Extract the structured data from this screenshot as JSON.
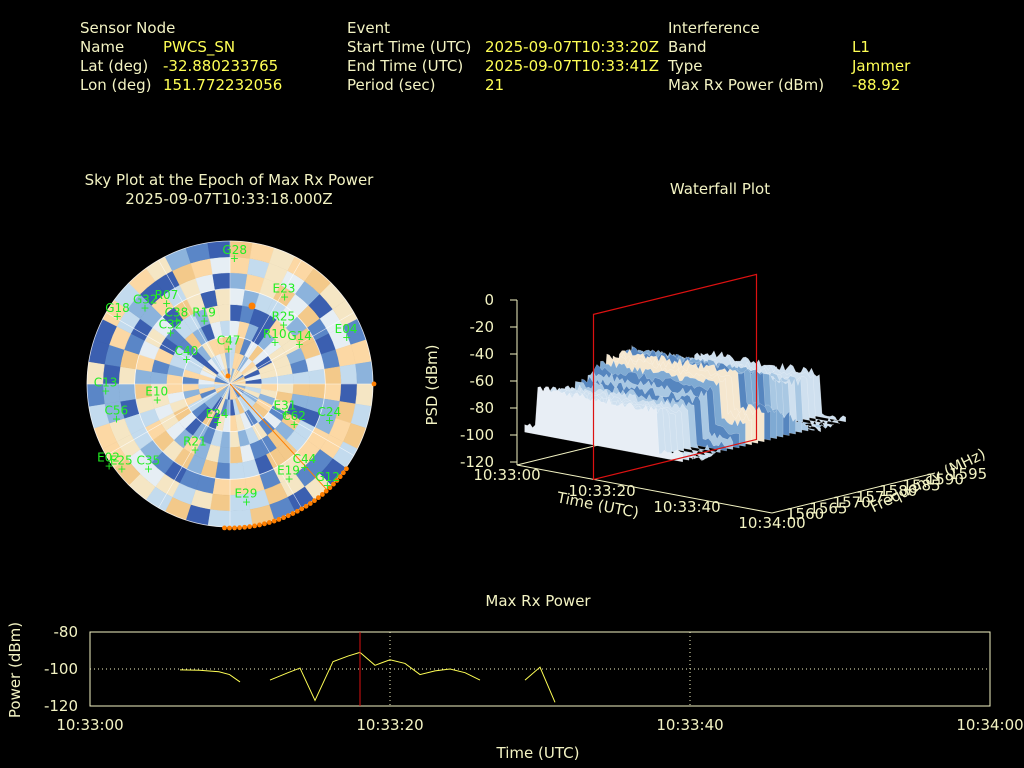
{
  "header": {
    "sensor": {
      "title": "Sensor Node",
      "rows": [
        {
          "label": "Name",
          "value": "PWCS_SN"
        },
        {
          "label": "Lat (deg)",
          "value": "-32.880233765"
        },
        {
          "label": "Lon (deg)",
          "value": "151.772232056"
        }
      ]
    },
    "event": {
      "title": "Event",
      "rows": [
        {
          "label": "Start Time (UTC)",
          "value": "2025-09-07T10:33:20Z"
        },
        {
          "label": "End Time (UTC)",
          "value": "2025-09-07T10:33:41Z"
        },
        {
          "label": "Period (sec)",
          "value": "21"
        }
      ]
    },
    "interference": {
      "title": "Interference",
      "rows": [
        {
          "label": "Band",
          "value": "L1"
        },
        {
          "label": "Type",
          "value": "Jammer"
        },
        {
          "label": "Max Rx Power (dBm)",
          "value": "-88.92"
        }
      ]
    }
  },
  "colors": {
    "background": "#000000",
    "label": "#f3f3c3",
    "value": "#ffff55",
    "satellite": "#22ee22",
    "marker": "#ff7f00",
    "trace": "#ffff55",
    "cursor": "#dd1111"
  },
  "chart_data": [
    {
      "type": "polar-heatmap",
      "title": "Sky Plot at the Epoch of Max Rx Power",
      "subtitle": "2025-09-07T10:33:18.000Z",
      "satellites": [
        {
          "id": "G28",
          "az": 2,
          "el": 88
        },
        {
          "id": "R07",
          "az": 322,
          "el": 72
        },
        {
          "id": "E23",
          "az": 32,
          "el": 72
        },
        {
          "id": "R19",
          "az": 338,
          "el": 48
        },
        {
          "id": "R25",
          "az": 42,
          "el": 56
        },
        {
          "id": "R10",
          "az": 47,
          "el": 43
        },
        {
          "id": "G18",
          "az": 301,
          "el": 92
        },
        {
          "id": "G32",
          "az": 312,
          "el": 80
        },
        {
          "id": "C38",
          "az": 320,
          "el": 58
        },
        {
          "id": "C32",
          "az": 311,
          "el": 55
        },
        {
          "id": "E04",
          "az": 68,
          "el": 88
        },
        {
          "id": "G14",
          "az": 60,
          "el": 56
        },
        {
          "id": "C47",
          "az": 358,
          "el": 25
        },
        {
          "id": "C40",
          "az": 300,
          "el": 35
        },
        {
          "id": "C13",
          "az": 267,
          "el": 87
        },
        {
          "id": "C56",
          "az": 253,
          "el": 83
        },
        {
          "id": "E10",
          "az": 258,
          "el": 52
        },
        {
          "id": "E24",
          "az": 198,
          "el": 28
        },
        {
          "id": "C24",
          "az": 110,
          "el": 74
        },
        {
          "id": "C62",
          "az": 122,
          "el": 53
        },
        {
          "id": "E31",
          "az": 118,
          "el": 44
        },
        {
          "id": "C35",
          "az": 224,
          "el": 82
        },
        {
          "id": "R21",
          "az": 208,
          "el": 52
        },
        {
          "id": "E25",
          "az": 232,
          "el": 96
        },
        {
          "id": "E02",
          "az": 236,
          "el": 102
        },
        {
          "id": "C44",
          "az": 138,
          "el": 78
        },
        {
          "id": "G12",
          "az": 136,
          "el": 98
        },
        {
          "id": "E19",
          "az": 148,
          "el": 78
        },
        {
          "id": "E29",
          "az": 172,
          "el": 83
        }
      ]
    },
    {
      "type": "surface",
      "title": "Waterfall Plot",
      "zlabel": "PSD (dBm)",
      "xlabel": "Time (UTC)",
      "ylabel": "Frequency (MHz)",
      "z_ticks": [
        "0",
        "-20",
        "-40",
        "-60",
        "-80",
        "-100",
        "-120"
      ],
      "time_ticks": [
        "10:33:00",
        "10:33:20",
        "10:33:40",
        "10:34:00"
      ],
      "freq_ticks": [
        "1560",
        "1565",
        "1570",
        "1575",
        "1580",
        "1585",
        "1590",
        "1595"
      ]
    },
    {
      "type": "line",
      "title": "Max Rx Power",
      "xlabel": "Time (UTC)",
      "ylabel": "Power (dBm)",
      "x_ticks": [
        "10:33:00",
        "10:33:20",
        "10:33:40",
        "10:34:00"
      ],
      "y_ticks": [
        "-80",
        "-100",
        "-120"
      ],
      "xlim": [
        0,
        60
      ],
      "ylim": [
        -120,
        -80
      ],
      "cursor_time": 18,
      "series": [
        {
          "x": [
            6.0,
            7.3,
            8.6,
            9.3,
            10.0
          ],
          "y": [
            -100.5,
            -100.7,
            -101.5,
            -103,
            -107
          ]
        },
        {
          "x": [
            12.0,
            13.2,
            14.0,
            15.0,
            16.2,
            17.2,
            18.0
          ],
          "y": [
            -106,
            -102,
            -99.5,
            -117,
            -96,
            -93,
            -91
          ]
        },
        {
          "x": [
            18.0,
            19.0,
            20.0,
            21.0,
            22.0,
            23.0,
            24.0,
            25.0,
            26.0
          ],
          "y": [
            -91,
            -98,
            -95,
            -97,
            -103,
            -101,
            -100,
            -102,
            -106
          ]
        },
        {
          "x": [
            29.0,
            30.0,
            31.0
          ],
          "y": [
            -106,
            -99,
            -118
          ]
        }
      ]
    }
  ]
}
